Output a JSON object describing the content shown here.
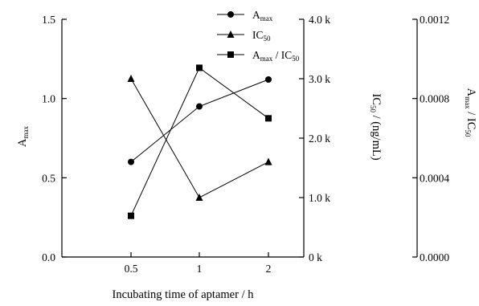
{
  "chart_data": {
    "type": "line",
    "x_categories": [
      "0.5",
      "1",
      "2"
    ],
    "xlabel": "Incubating time of aptamer / h",
    "axes": {
      "left": {
        "label_main": "A",
        "label_sub": "max",
        "range": [
          0,
          1.5
        ],
        "ticks": [
          {
            "value": 0,
            "label": "0.0"
          },
          {
            "value": 0.5,
            "label": "0.5"
          },
          {
            "value": 1.0,
            "label": "1.0"
          },
          {
            "value": 1.5,
            "label": "1.5"
          }
        ]
      },
      "right1": {
        "label_parts": [
          "IC",
          "50",
          " / (ng/mL)"
        ],
        "range": [
          0,
          4000
        ],
        "ticks": [
          {
            "value": 0,
            "label": "0 k"
          },
          {
            "value": 1000,
            "label": "1.0 k"
          },
          {
            "value": 2000,
            "label": "2.0 k"
          },
          {
            "value": 3000,
            "label": "3.0 k"
          },
          {
            "value": 4000,
            "label": "4.0 k"
          }
        ]
      },
      "right2": {
        "label_parts": [
          "A",
          "max",
          " / IC",
          "50"
        ],
        "range": [
          0,
          0.0012
        ],
        "ticks": [
          {
            "value": 0,
            "label": "0.0000"
          },
          {
            "value": 0.0004,
            "label": "0.0004"
          },
          {
            "value": 0.0008,
            "label": "0.0008"
          },
          {
            "value": 0.0012,
            "label": "0.0012"
          }
        ]
      }
    },
    "series": [
      {
        "name_main": "A",
        "name_sub": "max",
        "name_rest": "",
        "axis": "left",
        "marker": "circle",
        "values": [
          0.6,
          0.95,
          1.12
        ]
      },
      {
        "name_main": "IC",
        "name_sub": "50",
        "name_rest": "",
        "axis": "right1",
        "marker": "triangle",
        "values": [
          3000,
          1000,
          1600
        ]
      },
      {
        "name_main": "A",
        "name_sub": "max",
        "name_rest": " / IC",
        "name_sub2": "50",
        "axis": "right2",
        "marker": "square",
        "values": [
          0.000208,
          0.000955,
          0.0007
        ]
      }
    ],
    "legend_position": "top-right",
    "grid": false
  }
}
